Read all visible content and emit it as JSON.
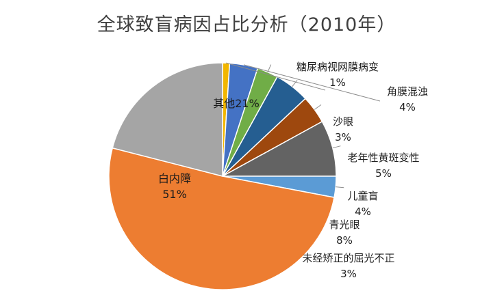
{
  "chart_data": {
    "type": "pie",
    "title": "全球致盲病因占比分析（2010年）",
    "slices": [
      {
        "name": "糖尿病视网膜病变",
        "value": 1,
        "label": "1%",
        "color": "#F2B600"
      },
      {
        "name": "角膜混浊",
        "value": 4,
        "label": "4%",
        "color": "#4472C4"
      },
      {
        "name": "沙眼",
        "value": 3,
        "label": "3%",
        "color": "#70AD47"
      },
      {
        "name": "老年性黄斑变性",
        "value": 5,
        "label": "5%",
        "color": "#255E91"
      },
      {
        "name": "儿童盲",
        "value": 4,
        "label": "4%",
        "color": "#9E480E"
      },
      {
        "name": "青光眼",
        "value": 8,
        "label": "8%",
        "color": "#636363"
      },
      {
        "name": "未经矫正的屈光不正",
        "value": 3,
        "label": "3%",
        "color": "#5B9BD5"
      },
      {
        "name": "白内障",
        "value": 51,
        "label": "51%",
        "color": "#ED7D31"
      },
      {
        "name": "其他",
        "value": 21,
        "label": "21%",
        "color": "#A5A5A5"
      }
    ],
    "start_angle": "12 o'clock",
    "direction": "clockwise",
    "legend": "none"
  }
}
